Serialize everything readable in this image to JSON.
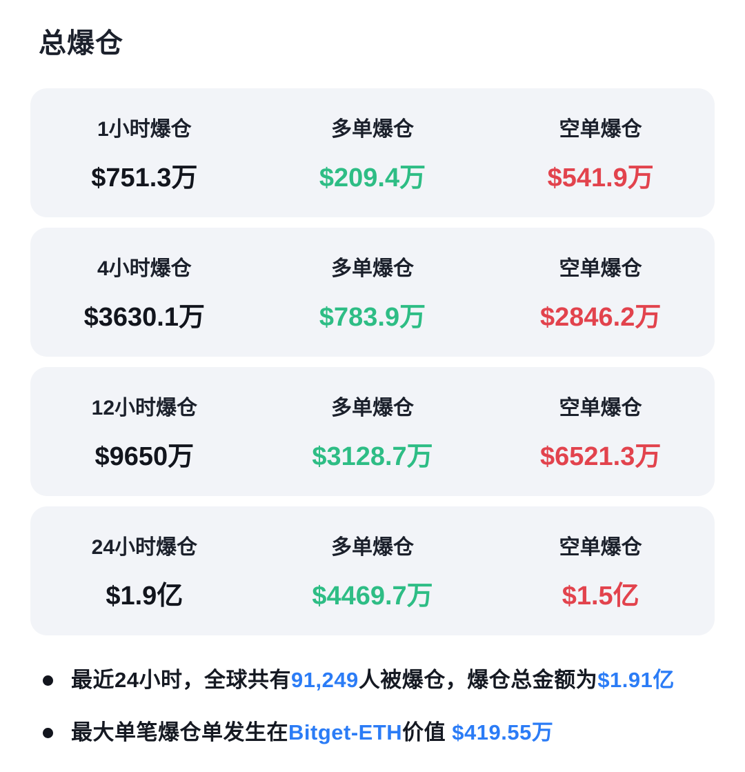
{
  "page": {
    "title": "总爆仓"
  },
  "colors": {
    "card_background": "#f2f4f8",
    "dark_text": "#12151d",
    "long_green": "#2ebd85",
    "short_red": "#e2434d",
    "highlight_blue": "#2b7cf6"
  },
  "cards": [
    {
      "period_label": "1小时爆仓",
      "total_value": "$751.3万",
      "long_label": "多单爆仓",
      "long_value": "$209.4万",
      "short_label": "空单爆仓",
      "short_value": "$541.9万"
    },
    {
      "period_label": "4小时爆仓",
      "total_value": "$3630.1万",
      "long_label": "多单爆仓",
      "long_value": "$783.9万",
      "short_label": "空单爆仓",
      "short_value": "$2846.2万"
    },
    {
      "period_label": "12小时爆仓",
      "total_value": "$9650万",
      "long_label": "多单爆仓",
      "long_value": "$3128.7万",
      "short_label": "空单爆仓",
      "short_value": "$6521.3万"
    },
    {
      "period_label": "24小时爆仓",
      "total_value": "$1.9亿",
      "long_label": "多单爆仓",
      "long_value": "$4469.7万",
      "short_label": "空单爆仓",
      "short_value": "$1.5亿"
    }
  ],
  "notes": [
    {
      "t1": "最近24小时，全球共有",
      "b1": "91,249",
      "t2": "人被爆仓，爆仓总金额为",
      "b2": "$1.91亿"
    },
    {
      "t1": "最大单笔爆仓单发生在",
      "b1": "Bitget-ETH",
      "t2": "价值 ",
      "b2": "$419.55万"
    }
  ]
}
